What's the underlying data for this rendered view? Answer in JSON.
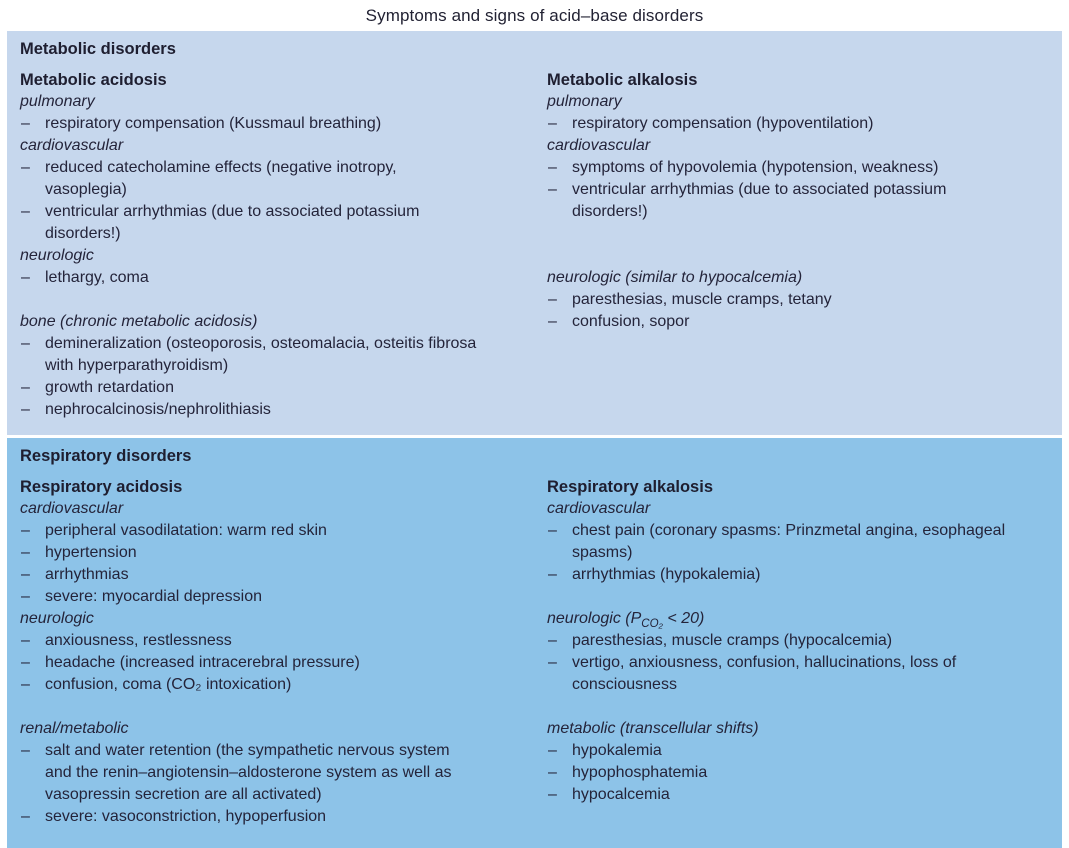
{
  "title": "Symptoms and signs of acid–base disorders",
  "colors": {
    "panel_metabolic_bg": "#c6d7ed",
    "panel_respiratory_bg": "#8dc3e8",
    "text": "#24243a"
  },
  "bullet_char": "–",
  "sections": [
    {
      "id": "metabolic",
      "header": "Metabolic disorders",
      "bg": "#c6d7ed",
      "columns": [
        {
          "title": "Metabolic acidosis",
          "groups": [
            {
              "label": "pulmonary",
              "gap_before": 0,
              "items": [
                "respiratory compensation (Kussmaul breathing)"
              ]
            },
            {
              "label": "cardiovascular",
              "gap_before": 0,
              "items": [
                "reduced catecholamine effects (negative inotropy, vasoplegia)",
                "ventricular arrhythmias (due to associated potassium disorders!)"
              ]
            },
            {
              "label": "neurologic",
              "gap_before": 0,
              "items": [
                "lethargy, coma"
              ]
            },
            {
              "label": "bone (chronic metabolic acidosis)",
              "gap_before": 1,
              "items": [
                "demineralization (osteoporosis, osteomalacia, osteitis fibrosa with hyperparathyroidism)",
                "growth retardation",
                "nephrocalcinosis/nephrolithiasis"
              ]
            }
          ]
        },
        {
          "title": "Metabolic alkalosis",
          "groups": [
            {
              "label": "pulmonary",
              "gap_before": 0,
              "items": [
                "respiratory compensation (hypoventilation)"
              ]
            },
            {
              "label": "cardiovascular",
              "gap_before": 0,
              "items": [
                "symptoms of hypovolemia (hypotension, weakness)",
                "ventricular arrhythmias (due to associated potassium disorders!)"
              ]
            },
            {
              "label": "neurologic (similar to hypocalcemia)",
              "gap_before": 2,
              "items": [
                "paresthesias, muscle cramps, tetany",
                "confusion, sopor"
              ]
            }
          ]
        }
      ]
    },
    {
      "id": "respiratory",
      "header": "Respiratory disorders",
      "bg": "#8dc3e8",
      "columns": [
        {
          "title": "Respiratory acidosis",
          "groups": [
            {
              "label": "cardiovascular",
              "gap_before": 0,
              "items": [
                "peripheral vasodilatation: warm red skin",
                "hypertension",
                "arrhythmias",
                "severe: myocardial depression"
              ]
            },
            {
              "label": "neurologic",
              "gap_before": 0,
              "items": [
                "anxiousness, restlessness",
                "headache (increased intracerebral pressure)",
                "confusion, coma (CO₂ intoxication)"
              ]
            },
            {
              "label": "renal/metabolic",
              "gap_before": 1,
              "items": [
                "salt and water retention (the sympathetic nervous sys­tem and the renin–angiotensin–aldosterone system as well as vasopressin secretion are all activated)",
                "severe: vasoconstriction, hypoperfusion"
              ]
            }
          ]
        },
        {
          "title": "Respiratory alkalosis",
          "groups": [
            {
              "label": "cardiovascular",
              "gap_before": 0,
              "items": [
                "chest pain (coronary spasms: Prinzmetal angina, esopha­geal spasms)",
                "arrhythmias (hypokalemia)"
              ]
            },
            {
              "label": "neurologic (P[sub]CO₂[/sub] < 20)",
              "gap_before": 1,
              "items": [
                "paresthesias, muscle cramps (hypocalcemia)",
                "vertigo, anxiousness, confusion, hallucinations, loss of consciousness"
              ]
            },
            {
              "label": "metabolic (transcellular shifts)",
              "gap_before": 1,
              "items": [
                "hypokalemia",
                "hypophosphatemia",
                "hypocalcemia"
              ]
            }
          ]
        }
      ]
    }
  ]
}
